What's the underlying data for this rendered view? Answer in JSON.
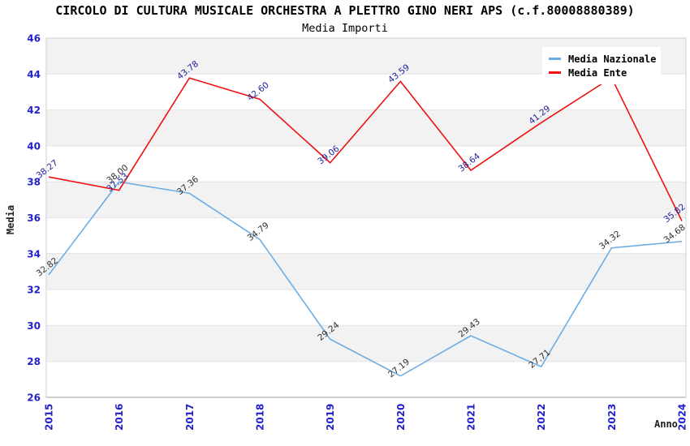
{
  "chart_data": {
    "type": "line",
    "title": "CIRCOLO DI CULTURA MUSICALE ORCHESTRA A PLETTRO GINO NERI APS (c.f.80008880389)",
    "subtitle": "Media Importi",
    "xlabel": "Anno",
    "ylabel": "Media",
    "ylim": [
      26,
      46
    ],
    "yticks": [
      26,
      28,
      30,
      32,
      34,
      36,
      38,
      40,
      42,
      44,
      46
    ],
    "grid": "horizontal-bands-alternating",
    "legend_position": "top-right",
    "categories": [
      "2015",
      "2016",
      "2017",
      "2018",
      "2019",
      "2020",
      "2021",
      "2022",
      "2023",
      "2024"
    ],
    "series": [
      {
        "name": "Media Nazionale",
        "color": "#6cace4",
        "label_color": "#303030",
        "values": [
          32.82,
          38.0,
          37.36,
          34.79,
          29.24,
          27.19,
          29.43,
          27.71,
          34.32,
          34.68
        ],
        "hidden_label_indices": []
      },
      {
        "name": "Media Ente",
        "color": "#ee1111",
        "label_color": "#1f1f9c",
        "values": [
          38.27,
          37.53,
          43.78,
          42.6,
          39.06,
          43.59,
          38.64,
          41.29,
          43.8,
          35.82
        ],
        "hidden_label_indices": [
          8
        ]
      }
    ],
    "colors": {
      "axis_text": "#2222cc",
      "band": "#f2f2f2",
      "gridline": "#e3e3e3",
      "plot_border": "#cfcfcf",
      "bottom_axis": "#a0a0a0",
      "background": "#ffffff"
    }
  }
}
